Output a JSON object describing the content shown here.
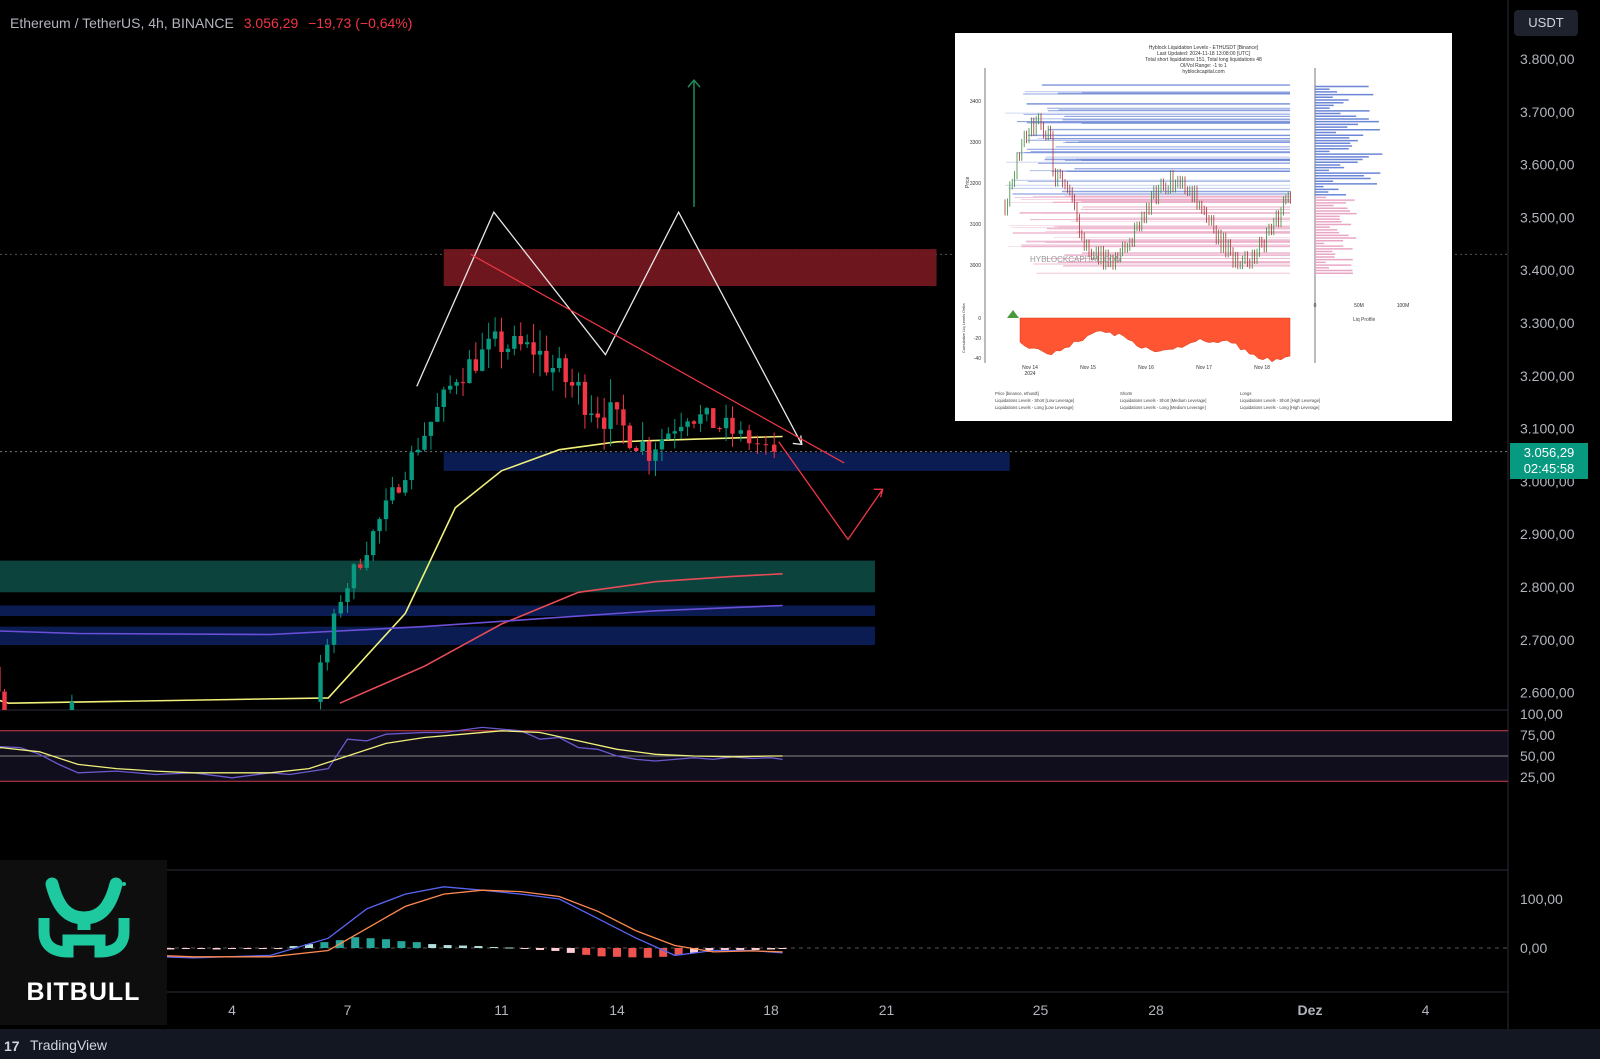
{
  "header": {
    "symbol": "Ethereum / TetherUS, 4h, BINANCE",
    "price": "3.056,29",
    "change": "−19,73 (−0,64%)"
  },
  "currency_button": "USDT",
  "last_price": {
    "price": "3.056,29",
    "countdown": "02:45:58"
  },
  "footer": {
    "brand": "TradingView",
    "logo_glyph": "17"
  },
  "watermark": {
    "brand": "BITBULL"
  },
  "colors": {
    "background": "#000000",
    "up": "#089981",
    "down": "#f23645",
    "ema_fast": "#f0f07a",
    "ema_slow": "#e84b57",
    "ema_purple": "#6b4fd8",
    "resistance_zone": "#7a1820",
    "support_zone": "#0c1f5c",
    "green_zone": "#0d4a42",
    "pattern_lines": "#e8e8e8",
    "bitbull_logo": "#1ec99f"
  },
  "inset": {
    "title_lines": [
      "Hyblock Liquidation Levels - ETHUSDT [Binance]",
      "Last Updated: 2024-11-18 13:08:00 [UTC]",
      "Total short liquidations 151, Total long liquidations 48",
      "OI/Vol Range: -1 to 1",
      "hyblockcapital.com"
    ],
    "watermark": "HYBLOCKCAPITAL.COM",
    "y_label": "Price",
    "y_ticks": [
      "3400",
      "3300",
      "3200",
      "3100",
      "3000"
    ],
    "delta_label": "Cumulative Liq Levels Delta",
    "delta_ticks": [
      "0",
      "-20",
      "-40"
    ],
    "x_ticks": [
      "Nov 14",
      "Nov 15",
      "Nov 16",
      "Nov 17",
      "Nov 18"
    ],
    "x_sub": "2024",
    "profile_ticks": [
      "0",
      "50M",
      "100M"
    ],
    "profile_label": "Liq Profile",
    "legend": [
      "Price [binance, ethusdt]",
      "Shorts",
      "Longs",
      "Liquidations Levels - Short [Low Leverage]",
      "Liquidations Levels - Short [Medium Leverage]",
      "Liquidations Levels - Short [High Leverage]",
      "Liquidations Levels - Long [Low Leverage]",
      "Liquidations Levels - Long [Medium Leverage]",
      "Liquidations Levels - Long [High Leverage]"
    ]
  },
  "chart_data": [
    {
      "type": "candlestick",
      "title": "Ethereum / TetherUS, 4h, BINANCE",
      "x_ticks": [
        "4",
        "7",
        "11",
        "14",
        "18",
        "21",
        "25",
        "28",
        "Dez",
        "4"
      ],
      "y_ticks": [
        "3.800,00",
        "3.700,00",
        "3.600,00",
        "3.500,00",
        "3.400,00",
        "3.300,00",
        "3.200,00",
        "3.100,00",
        "3.000,00",
        "2.900,00",
        "2.800,00",
        "2.700,00",
        "2.600,00"
      ],
      "ylim": [
        2580,
        3840
      ],
      "last_close": 3056.29,
      "zones": [
        {
          "name": "resistance",
          "from": 3370,
          "to": 3440,
          "day_start": 9.5,
          "day_end": 22.3
        },
        {
          "name": "support",
          "from": 3020,
          "to": 3055,
          "day_start": 9.5,
          "day_end": 24.2
        },
        {
          "name": "demand",
          "from": 2790,
          "to": 2850,
          "day_start": -3,
          "day_end": 20.7
        },
        {
          "name": "demand-low-1",
          "from": 2745,
          "to": 2765,
          "day_start": -3,
          "day_end": 20.7
        },
        {
          "name": "demand-low-2",
          "from": 2690,
          "to": 2725,
          "day_start": -3,
          "day_end": 20.7
        }
      ],
      "segments": [
        {
          "d": -3.5,
          "c": 2610,
          "n": 22,
          "vol": 10,
          "gap_after": true
        },
        {
          "d": 6.3,
          "c": 2600,
          "n": 4,
          "vol": 14
        },
        {
          "d": 7.0,
          "c": 2780,
          "n": 12,
          "vol": 16
        },
        {
          "d": 9.0,
          "c": 3070,
          "n": 6,
          "vol": 18
        },
        {
          "d": 10.0,
          "c": 3200,
          "n": 6,
          "vol": 22
        },
        {
          "d": 11.0,
          "c": 3260,
          "n": 6,
          "vol": 22
        },
        {
          "d": 12.0,
          "c": 3250,
          "n": 6,
          "vol": 28
        },
        {
          "d": 13.0,
          "c": 3180,
          "n": 6,
          "vol": 30
        },
        {
          "d": 14.0,
          "c": 3120,
          "n": 6,
          "vol": 24
        },
        {
          "d": 15.0,
          "c": 3060,
          "n": 6,
          "vol": 18
        },
        {
          "d": 16.0,
          "c": 3130,
          "n": 6,
          "vol": 20
        },
        {
          "d": 17.0,
          "c": 3100,
          "n": 6,
          "vol": 16
        },
        {
          "d": 18.3,
          "c": 3056,
          "n": 0,
          "vol": 0
        }
      ],
      "emas": [
        {
          "name": "ema-fast",
          "color": "#f0f07a",
          "points": [
            [
              -3.2,
              2585
            ],
            [
              -2.5,
              2595
            ],
            [
              -1.8,
              2580
            ],
            [
              6.5,
              2590
            ],
            [
              8.5,
              2750
            ],
            [
              9.8,
              2950
            ],
            [
              11,
              3020
            ],
            [
              12.5,
              3060
            ],
            [
              14,
              3075
            ],
            [
              16,
              3080
            ],
            [
              18.3,
              3085
            ]
          ]
        },
        {
          "name": "ema-red",
          "color": "#e84b57",
          "points": [
            [
              6.8,
              2580
            ],
            [
              9,
              2650
            ],
            [
              11,
              2730
            ],
            [
              13,
              2790
            ],
            [
              15,
              2810
            ],
            [
              17,
              2820
            ],
            [
              18.3,
              2825
            ]
          ]
        },
        {
          "name": "ema-purple",
          "color": "#6b4fd8",
          "points": [
            [
              -3.5,
              2720
            ],
            [
              0,
              2712
            ],
            [
              5,
              2710
            ],
            [
              9,
              2725
            ],
            [
              12,
              2740
            ],
            [
              15,
              2755
            ],
            [
              18.3,
              2765
            ]
          ]
        }
      ],
      "pattern": [
        [
          8.8,
          3180
        ],
        [
          10.8,
          3510
        ],
        [
          13.7,
          3240
        ],
        [
          15.6,
          3510
        ],
        [
          18.8,
          3070
        ]
      ],
      "projection": [
        [
          18.2,
          3075
        ],
        [
          20.0,
          2890
        ],
        [
          20.9,
          2985
        ]
      ],
      "arrow_up": [
        [
          16.0,
          3520
        ],
        [
          16.0,
          3760
        ]
      ],
      "trendline": [
        [
          10.2,
          3430
        ],
        [
          19.9,
          3035
        ]
      ]
    },
    {
      "type": "line",
      "name": "RSI",
      "y_ticks": [
        "100,00",
        "75,00",
        "50,00",
        "25,00"
      ],
      "ylim": [
        0,
        100
      ],
      "levels": [
        80,
        50,
        20
      ],
      "series": [
        {
          "name": "rsi",
          "values": [
            [
              -3.5,
              55
            ],
            [
              -2.5,
              62
            ],
            [
              -1.5,
              60
            ],
            [
              -1,
              52
            ],
            [
              -0.5,
              40
            ],
            [
              0,
              30
            ],
            [
              1,
              32
            ],
            [
              2,
              28
            ],
            [
              3,
              30
            ],
            [
              4,
              24
            ],
            [
              5,
              30
            ],
            [
              5.5,
              28
            ],
            [
              6.5,
              35
            ],
            [
              7,
              70
            ],
            [
              7.5,
              68
            ],
            [
              8,
              76
            ],
            [
              9,
              78
            ],
            [
              9.5,
              78
            ],
            [
              10.5,
              84
            ],
            [
              11,
              82
            ],
            [
              11.5,
              80
            ],
            [
              12,
              70
            ],
            [
              12.5,
              72
            ],
            [
              13,
              60
            ],
            [
              13.5,
              58
            ],
            [
              14,
              50
            ],
            [
              14.5,
              46
            ],
            [
              15,
              44
            ],
            [
              15.5,
              46
            ],
            [
              16,
              48
            ],
            [
              16.5,
              46
            ],
            [
              17,
              49
            ],
            [
              17.5,
              47
            ],
            [
              18,
              48
            ],
            [
              18.3,
              46
            ]
          ]
        },
        {
          "name": "rsi-ma",
          "values": [
            [
              -3.5,
              45
            ],
            [
              -2,
              60
            ],
            [
              -1,
              55
            ],
            [
              0,
              40
            ],
            [
              1,
              35
            ],
            [
              2,
              32
            ],
            [
              3,
              30
            ],
            [
              4,
              30
            ],
            [
              5,
              30
            ],
            [
              6,
              35
            ],
            [
              7,
              50
            ],
            [
              8,
              65
            ],
            [
              9,
              72
            ],
            [
              10,
              76
            ],
            [
              11,
              80
            ],
            [
              12,
              78
            ],
            [
              13,
              68
            ],
            [
              14,
              58
            ],
            [
              15,
              52
            ],
            [
              16,
              50
            ],
            [
              17,
              49
            ],
            [
              18,
              50
            ],
            [
              18.3,
              50
            ]
          ]
        }
      ]
    },
    {
      "type": "bar",
      "name": "MACD",
      "y_ticks": [
        "100,00",
        "0,00"
      ],
      "ylim": [
        -30,
        130
      ],
      "histogram": [
        [
          -0.8,
          -2
        ],
        [
          -0.4,
          -2
        ],
        [
          0,
          -3
        ],
        [
          0.4,
          -3
        ],
        [
          0.8,
          -2
        ],
        [
          1.2,
          -3
        ],
        [
          1.6,
          -2
        ],
        [
          2,
          -2
        ],
        [
          2.4,
          -3
        ],
        [
          2.8,
          -2
        ],
        [
          3.2,
          -2
        ],
        [
          3.6,
          -3
        ],
        [
          4,
          -2
        ],
        [
          4.4,
          -2
        ],
        [
          4.8,
          -2
        ],
        [
          5.2,
          -1
        ],
        [
          5.6,
          4
        ],
        [
          6,
          8
        ],
        [
          6.4,
          12
        ],
        [
          6.8,
          16
        ],
        [
          7.2,
          22
        ],
        [
          7.6,
          20
        ],
        [
          8,
          18
        ],
        [
          8.4,
          14
        ],
        [
          8.8,
          12
        ],
        [
          9.2,
          8
        ],
        [
          9.6,
          6
        ],
        [
          10,
          5
        ],
        [
          10.4,
          4
        ],
        [
          10.8,
          2
        ],
        [
          11.2,
          1
        ],
        [
          11.6,
          -2
        ],
        [
          12,
          -4
        ],
        [
          12.4,
          -6
        ],
        [
          12.8,
          -10
        ],
        [
          13.2,
          -14
        ],
        [
          13.6,
          -17
        ],
        [
          14,
          -18
        ],
        [
          14.4,
          -19
        ],
        [
          14.8,
          -20
        ],
        [
          15.2,
          -18
        ],
        [
          15.6,
          -14
        ],
        [
          16,
          -10
        ],
        [
          16.4,
          -8
        ],
        [
          16.8,
          -6
        ],
        [
          17.2,
          -5
        ],
        [
          17.6,
          -4
        ],
        [
          18,
          -3
        ],
        [
          18.3,
          -2
        ]
      ],
      "series": [
        {
          "name": "macd",
          "values": [
            [
              -0.8,
              -5
            ],
            [
              1,
              -15
            ],
            [
              3,
              -20
            ],
            [
              5,
              -15
            ],
            [
              6.5,
              20
            ],
            [
              7.5,
              80
            ],
            [
              8.5,
              110
            ],
            [
              9.5,
              125
            ],
            [
              10.5,
              118
            ],
            [
              11.5,
              110
            ],
            [
              12.5,
              100
            ],
            [
              13.5,
              60
            ],
            [
              14.5,
              20
            ],
            [
              15.5,
              -15
            ],
            [
              16.5,
              -5
            ],
            [
              17.5,
              -5
            ],
            [
              18.3,
              -10
            ]
          ]
        },
        {
          "name": "signal",
          "values": [
            [
              -0.8,
              -10
            ],
            [
              1,
              -12
            ],
            [
              3,
              -18
            ],
            [
              5,
              -18
            ],
            [
              6.5,
              -5
            ],
            [
              7.5,
              40
            ],
            [
              8.5,
              85
            ],
            [
              9.5,
              110
            ],
            [
              10.5,
              118
            ],
            [
              11.5,
              115
            ],
            [
              12.5,
              105
            ],
            [
              13.5,
              75
            ],
            [
              14.5,
              35
            ],
            [
              15.5,
              5
            ],
            [
              16.5,
              -8
            ],
            [
              17.5,
              -6
            ],
            [
              18.3,
              -8
            ]
          ]
        }
      ]
    }
  ]
}
